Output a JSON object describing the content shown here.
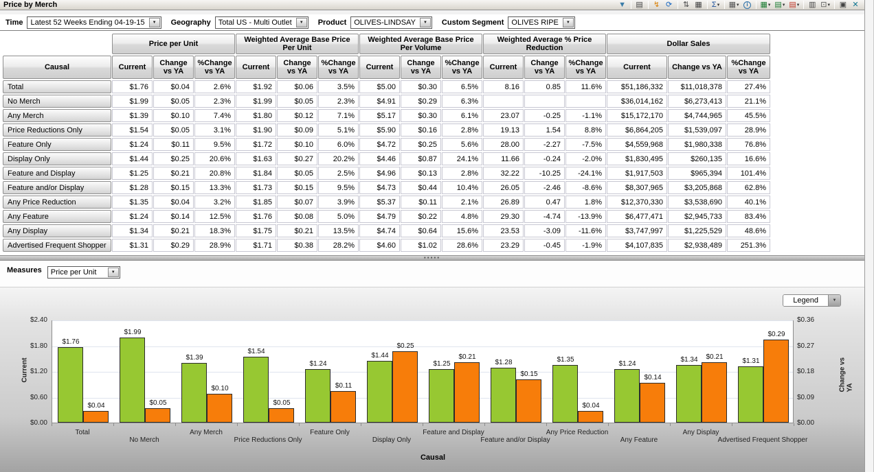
{
  "window": {
    "title": "Price by Merch"
  },
  "toolbar": {
    "icons": [
      {
        "name": "filter-icon",
        "glyph": "▼",
        "color": "#3a7ca8"
      },
      {
        "name": "grid-report-icon",
        "glyph": "▤",
        "color": "#444",
        "sep": true
      },
      {
        "name": "calculated-column-icon",
        "glyph": "↯",
        "color": "#d87d00",
        "sep": true
      },
      {
        "name": "refresh-icon",
        "glyph": "⟳",
        "color": "#1565c0"
      },
      {
        "name": "sort-icon",
        "glyph": "⇅",
        "color": "#444",
        "sep": true
      },
      {
        "name": "table-format-icon",
        "glyph": "▦",
        "color": "#444"
      },
      {
        "name": "aggregate-sum-icon",
        "glyph": "Σ",
        "color": "#1a4f9c",
        "caret": true,
        "sep": true
      },
      {
        "name": "table-layout-icon",
        "glyph": "▦",
        "color": "#555",
        "caret": true,
        "sep": true
      },
      {
        "name": "info-icon",
        "glyph": "i",
        "color": "#2a6fa8",
        "circle": true
      },
      {
        "name": "export-excel-icon",
        "glyph": "▦",
        "color": "#1e7e34",
        "caret": true,
        "sep": true
      },
      {
        "name": "export-doc-icon",
        "glyph": "▤",
        "color": "#1e7e34",
        "caret": true
      },
      {
        "name": "export-ppt-icon",
        "glyph": "▤",
        "color": "#c0392b",
        "caret": true
      },
      {
        "name": "copy-table-icon",
        "glyph": "▥",
        "color": "#444",
        "sep": true
      },
      {
        "name": "format-painter-icon",
        "glyph": "⊡",
        "color": "#555",
        "caret": true
      },
      {
        "name": "copy-icon",
        "glyph": "▣",
        "color": "#444",
        "sep": true
      },
      {
        "name": "tools-icon",
        "glyph": "✕",
        "color": "#0e7490"
      }
    ]
  },
  "filters": [
    {
      "id": "time",
      "label": "Time",
      "value": "Latest 52 Weeks Ending 04-19-15"
    },
    {
      "id": "geography",
      "label": "Geography",
      "value": "Total US - Multi Outlet"
    },
    {
      "id": "product",
      "label": "Product",
      "value": "OLIVES-LINDSAY"
    },
    {
      "id": "custom-segment",
      "label": "Custom Segment",
      "value": "OLIVES RIPE"
    }
  ],
  "table": {
    "row_header": "Causal",
    "groups": [
      {
        "label": "Price per Unit"
      },
      {
        "label": "Weighted Average Base Price Per Unit"
      },
      {
        "label": "Weighted Average Base Price Per Volume"
      },
      {
        "label": "Weighted Average % Price Reduction"
      },
      {
        "label": "Dollar Sales"
      }
    ],
    "sub_headers": [
      "Current",
      "Change vs YA",
      "%Change vs YA"
    ],
    "rows": [
      {
        "label": "Total",
        "values": [
          "$1.76",
          "$0.04",
          "2.6%",
          "$1.92",
          "$0.06",
          "3.5%",
          "$5.00",
          "$0.30",
          "6.5%",
          "8.16",
          "0.85",
          "11.6%",
          "$51,186,332",
          "$11,018,378",
          "27.4%"
        ]
      },
      {
        "label": "No Merch",
        "values": [
          "$1.99",
          "$0.05",
          "2.3%",
          "$1.99",
          "$0.05",
          "2.3%",
          "$4.91",
          "$0.29",
          "6.3%",
          "",
          "",
          "",
          "$36,014,162",
          "$6,273,413",
          "21.1%"
        ]
      },
      {
        "label": "Any Merch",
        "values": [
          "$1.39",
          "$0.10",
          "7.4%",
          "$1.80",
          "$0.12",
          "7.1%",
          "$5.17",
          "$0.30",
          "6.1%",
          "23.07",
          "-0.25",
          "-1.1%",
          "$15,172,170",
          "$4,744,965",
          "45.5%"
        ]
      },
      {
        "label": "Price Reductions Only",
        "values": [
          "$1.54",
          "$0.05",
          "3.1%",
          "$1.90",
          "$0.09",
          "5.1%",
          "$5.90",
          "$0.16",
          "2.8%",
          "19.13",
          "1.54",
          "8.8%",
          "$6,864,205",
          "$1,539,097",
          "28.9%"
        ]
      },
      {
        "label": "Feature Only",
        "values": [
          "$1.24",
          "$0.11",
          "9.5%",
          "$1.72",
          "$0.10",
          "6.0%",
          "$4.72",
          "$0.25",
          "5.6%",
          "28.00",
          "-2.27",
          "-7.5%",
          "$4,559,968",
          "$1,980,338",
          "76.8%"
        ]
      },
      {
        "label": "Display Only",
        "values": [
          "$1.44",
          "$0.25",
          "20.6%",
          "$1.63",
          "$0.27",
          "20.2%",
          "$4.46",
          "$0.87",
          "24.1%",
          "11.66",
          "-0.24",
          "-2.0%",
          "$1,830,495",
          "$260,135",
          "16.6%"
        ]
      },
      {
        "label": "Feature and Display",
        "values": [
          "$1.25",
          "$0.21",
          "20.8%",
          "$1.84",
          "$0.05",
          "2.5%",
          "$4.96",
          "$0.13",
          "2.8%",
          "32.22",
          "-10.25",
          "-24.1%",
          "$1,917,503",
          "$965,394",
          "101.4%"
        ]
      },
      {
        "label": "Feature and/or Display",
        "values": [
          "$1.28",
          "$0.15",
          "13.3%",
          "$1.73",
          "$0.15",
          "9.5%",
          "$4.73",
          "$0.44",
          "10.4%",
          "26.05",
          "-2.46",
          "-8.6%",
          "$8,307,965",
          "$3,205,868",
          "62.8%"
        ]
      },
      {
        "label": "Any Price Reduction",
        "values": [
          "$1.35",
          "$0.04",
          "3.2%",
          "$1.85",
          "$0.07",
          "3.9%",
          "$5.37",
          "$0.11",
          "2.1%",
          "26.89",
          "0.47",
          "1.8%",
          "$12,370,330",
          "$3,538,690",
          "40.1%"
        ]
      },
      {
        "label": "Any Feature",
        "values": [
          "$1.24",
          "$0.14",
          "12.5%",
          "$1.76",
          "$0.08",
          "5.0%",
          "$4.79",
          "$0.22",
          "4.8%",
          "29.30",
          "-4.74",
          "-13.9%",
          "$6,477,471",
          "$2,945,733",
          "83.4%"
        ]
      },
      {
        "label": "Any Display",
        "values": [
          "$1.34",
          "$0.21",
          "18.3%",
          "$1.75",
          "$0.21",
          "13.5%",
          "$4.74",
          "$0.64",
          "15.6%",
          "23.53",
          "-3.09",
          "-11.6%",
          "$3,747,997",
          "$1,225,529",
          "48.6%"
        ]
      },
      {
        "label": "Advertised Frequent Shopper",
        "values": [
          "$1.31",
          "$0.29",
          "28.9%",
          "$1.71",
          "$0.38",
          "28.2%",
          "$4.60",
          "$1.02",
          "28.6%",
          "23.29",
          "-0.45",
          "-1.9%",
          "$4,107,835",
          "$2,938,489",
          "251.3%"
        ]
      }
    ]
  },
  "measures": {
    "label": "Measures",
    "value": "Price per Unit"
  },
  "chart": {
    "legend_label": "Legend"
  },
  "chart_data": {
    "type": "bar",
    "title": "",
    "xlabel": "Causal",
    "categories": [
      "Total",
      "No Merch",
      "Any Merch",
      "Price Reductions Only",
      "Feature Only",
      "Display Only",
      "Feature and Display",
      "Feature and/or Display",
      "Any Price Reduction",
      "Any Feature",
      "Any Display",
      "Advertised Frequent Shopper"
    ],
    "series": [
      {
        "name": "Current",
        "axis": "left",
        "color": "#97c832",
        "values": [
          1.76,
          1.99,
          1.39,
          1.54,
          1.24,
          1.44,
          1.25,
          1.28,
          1.35,
          1.24,
          1.34,
          1.31
        ]
      },
      {
        "name": "Change vs YA",
        "axis": "right",
        "color": "#f77d0a",
        "values": [
          0.04,
          0.05,
          0.1,
          0.05,
          0.11,
          0.25,
          0.21,
          0.15,
          0.04,
          0.14,
          0.21,
          0.29
        ]
      }
    ],
    "left_axis": {
      "label": "Current",
      "min": 0,
      "max": 2.4,
      "ticks": [
        "$0.00",
        "$0.60",
        "$1.20",
        "$1.80",
        "$2.40"
      ]
    },
    "right_axis": {
      "label": "Change vs YA",
      "min": 0,
      "max": 0.36,
      "ticks": [
        "$0.00",
        "$0.09",
        "$0.18",
        "$0.27",
        "$0.36"
      ]
    },
    "grid": true,
    "legend_position": "dropdown-top-right",
    "bar_label_format": "$0.00"
  }
}
